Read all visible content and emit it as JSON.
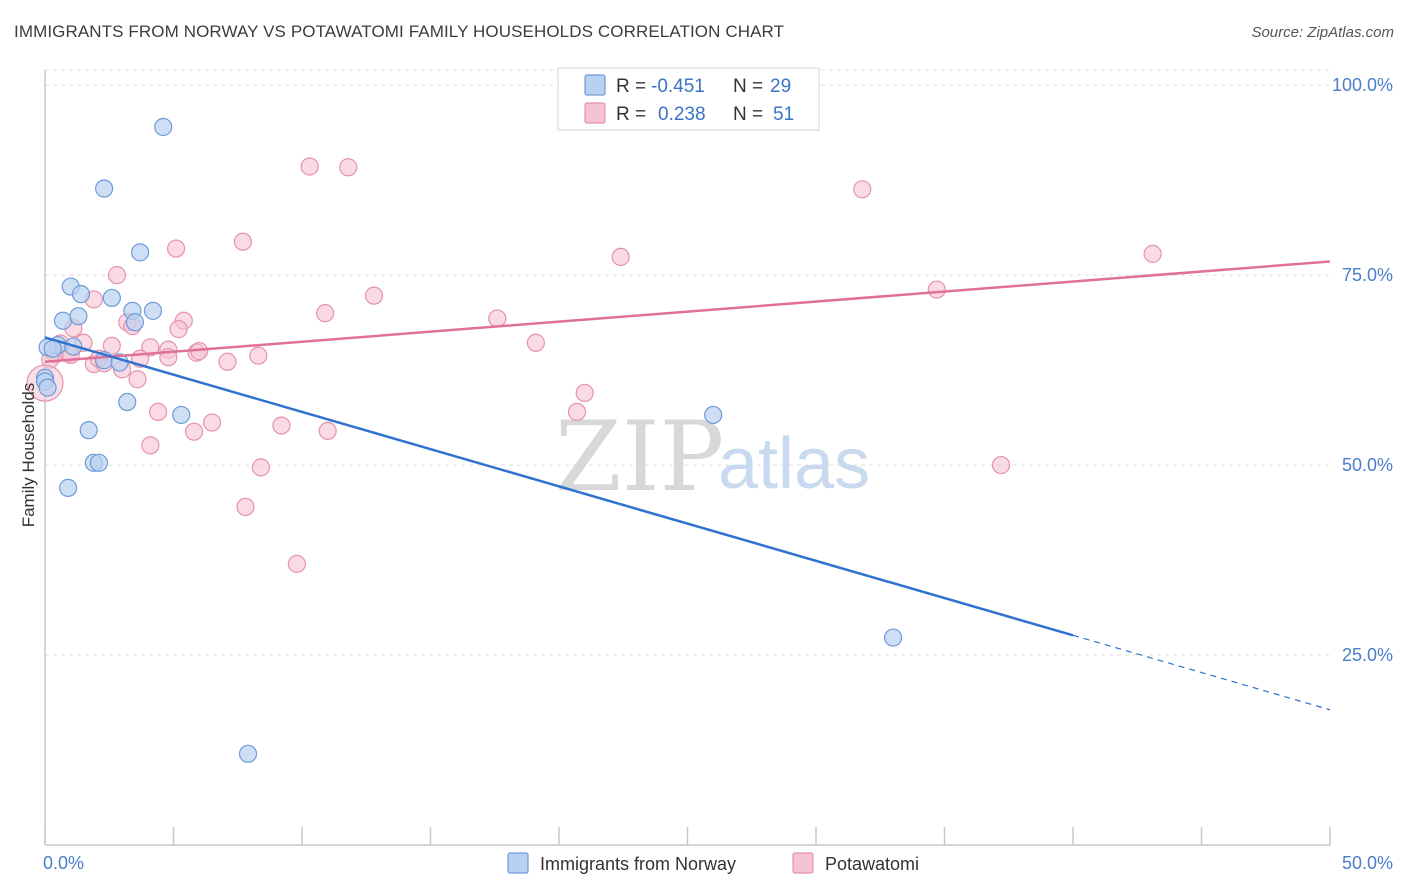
{
  "title": "IMMIGRANTS FROM NORWAY VS POTAWATOMI FAMILY HOUSEHOLDS CORRELATION CHART",
  "source": "Source: ZipAtlas.com",
  "watermark": {
    "zip": "ZIP",
    "atlas": "atlas"
  },
  "colors": {
    "norway_fill": "#b9d1f1",
    "norway_stroke": "#6f9bd8",
    "norway_line": "#2f72cf",
    "pota_fill": "#f6c3d4",
    "pota_stroke": "#e592ae",
    "pota_line": "#e0709a",
    "grid": "#dddddd",
    "axis": "#c8c8c8",
    "tick_text": "#4a7ec9"
  },
  "legend": {
    "rows": [
      {
        "r_label": "R =",
        "r_value": "-0.451",
        "n_label": "N =",
        "n_value": "29"
      },
      {
        "r_label": "R =",
        "r_value": "0.238",
        "n_label": "N =",
        "n_value": "51"
      }
    ]
  },
  "bottom_legend": [
    "Immigrants from Norway",
    "Potawatomi"
  ],
  "chart_data": {
    "type": "scatter",
    "title": "IMMIGRANTS FROM NORWAY VS POTAWATOMI FAMILY HOUSEHOLDS CORRELATION CHART",
    "xlabel": "",
    "ylabel": "Family Households",
    "xlim": [
      0,
      50
    ],
    "ylim": [
      0,
      102
    ],
    "x_ticks": [
      "0.0%",
      "50.0%"
    ],
    "y_ticks": [
      {
        "value": 100,
        "label": "100.0%"
      },
      {
        "value": 75,
        "label": "75.0%"
      },
      {
        "value": 50,
        "label": "50.0%"
      },
      {
        "value": 25,
        "label": "25.0%"
      }
    ],
    "x_minor_ticks": [
      0,
      5,
      10,
      15,
      20,
      25,
      30,
      35,
      40,
      45,
      50
    ],
    "grid": true,
    "legend_position": "top-center",
    "series": [
      {
        "name": "Immigrants from Norway",
        "r": -0.451,
        "n": 29,
        "points": [
          [
            4.6,
            94.5
          ],
          [
            2.3,
            86.4
          ],
          [
            3.7,
            78.0
          ],
          [
            1.0,
            73.5
          ],
          [
            1.4,
            72.5
          ],
          [
            2.6,
            72.0
          ],
          [
            4.2,
            70.3
          ],
          [
            3.4,
            70.3
          ],
          [
            0.7,
            69.0
          ],
          [
            1.3,
            69.6
          ],
          [
            3.5,
            68.8
          ],
          [
            0.5,
            65.8
          ],
          [
            0.1,
            65.5
          ],
          [
            1.1,
            65.6
          ],
          [
            0.3,
            65.3
          ],
          [
            2.3,
            63.8
          ],
          [
            2.9,
            63.5
          ],
          [
            0.0,
            61.5
          ],
          [
            0.0,
            61.0
          ],
          [
            0.1,
            60.2
          ],
          [
            3.2,
            58.3
          ],
          [
            5.3,
            56.6
          ],
          [
            1.7,
            54.6
          ],
          [
            1.9,
            50.3
          ],
          [
            2.1,
            50.3
          ],
          [
            0.9,
            47.0
          ],
          [
            26.0,
            56.6
          ],
          [
            33.0,
            27.3
          ],
          [
            7.9,
            12.0
          ]
        ],
        "trend": {
          "x0": 0.0,
          "y0": 66.8,
          "x1": 40.0,
          "y1": 27.6,
          "dash_to_x": 50.0,
          "dash_to_y": 17.8
        }
      },
      {
        "name": "Potawatomi",
        "r": 0.238,
        "n": 51,
        "points": [
          [
            10.3,
            89.3
          ],
          [
            11.8,
            89.2
          ],
          [
            31.8,
            86.3
          ],
          [
            5.1,
            78.5
          ],
          [
            7.7,
            79.4
          ],
          [
            22.4,
            77.4
          ],
          [
            43.1,
            77.8
          ],
          [
            2.8,
            75.0
          ],
          [
            34.7,
            73.1
          ],
          [
            12.8,
            72.3
          ],
          [
            1.9,
            71.8
          ],
          [
            10.9,
            70.0
          ],
          [
            17.6,
            69.3
          ],
          [
            3.2,
            68.8
          ],
          [
            5.4,
            69.0
          ],
          [
            3.4,
            68.3
          ],
          [
            5.2,
            67.9
          ],
          [
            1.1,
            68.0
          ],
          [
            1.5,
            66.1
          ],
          [
            2.6,
            65.7
          ],
          [
            19.1,
            66.1
          ],
          [
            4.1,
            65.5
          ],
          [
            4.8,
            65.2
          ],
          [
            5.9,
            64.8
          ],
          [
            8.3,
            64.4
          ],
          [
            0.4,
            64.6
          ],
          [
            0.9,
            64.7
          ],
          [
            3.7,
            64.0
          ],
          [
            4.8,
            64.2
          ],
          [
            0.2,
            63.9
          ],
          [
            1.9,
            63.3
          ],
          [
            2.3,
            63.4
          ],
          [
            3.0,
            62.6
          ],
          [
            7.1,
            63.6
          ],
          [
            3.6,
            61.3
          ],
          [
            21.0,
            59.5
          ],
          [
            20.7,
            57.0
          ],
          [
            4.4,
            57.0
          ],
          [
            6.5,
            55.6
          ],
          [
            9.2,
            55.2
          ],
          [
            11.0,
            54.5
          ],
          [
            5.8,
            54.4
          ],
          [
            4.1,
            52.6
          ],
          [
            8.4,
            49.7
          ],
          [
            37.2,
            50.0
          ],
          [
            7.8,
            44.5
          ],
          [
            9.8,
            37.0
          ],
          [
            1.0,
            64.5
          ],
          [
            2.1,
            64.0
          ],
          [
            0.6,
            66.0
          ],
          [
            6.0,
            65.0
          ]
        ],
        "trend": {
          "x0": 0.0,
          "y0": 63.6,
          "x1": 50.0,
          "y1": 76.8
        }
      }
    ]
  }
}
